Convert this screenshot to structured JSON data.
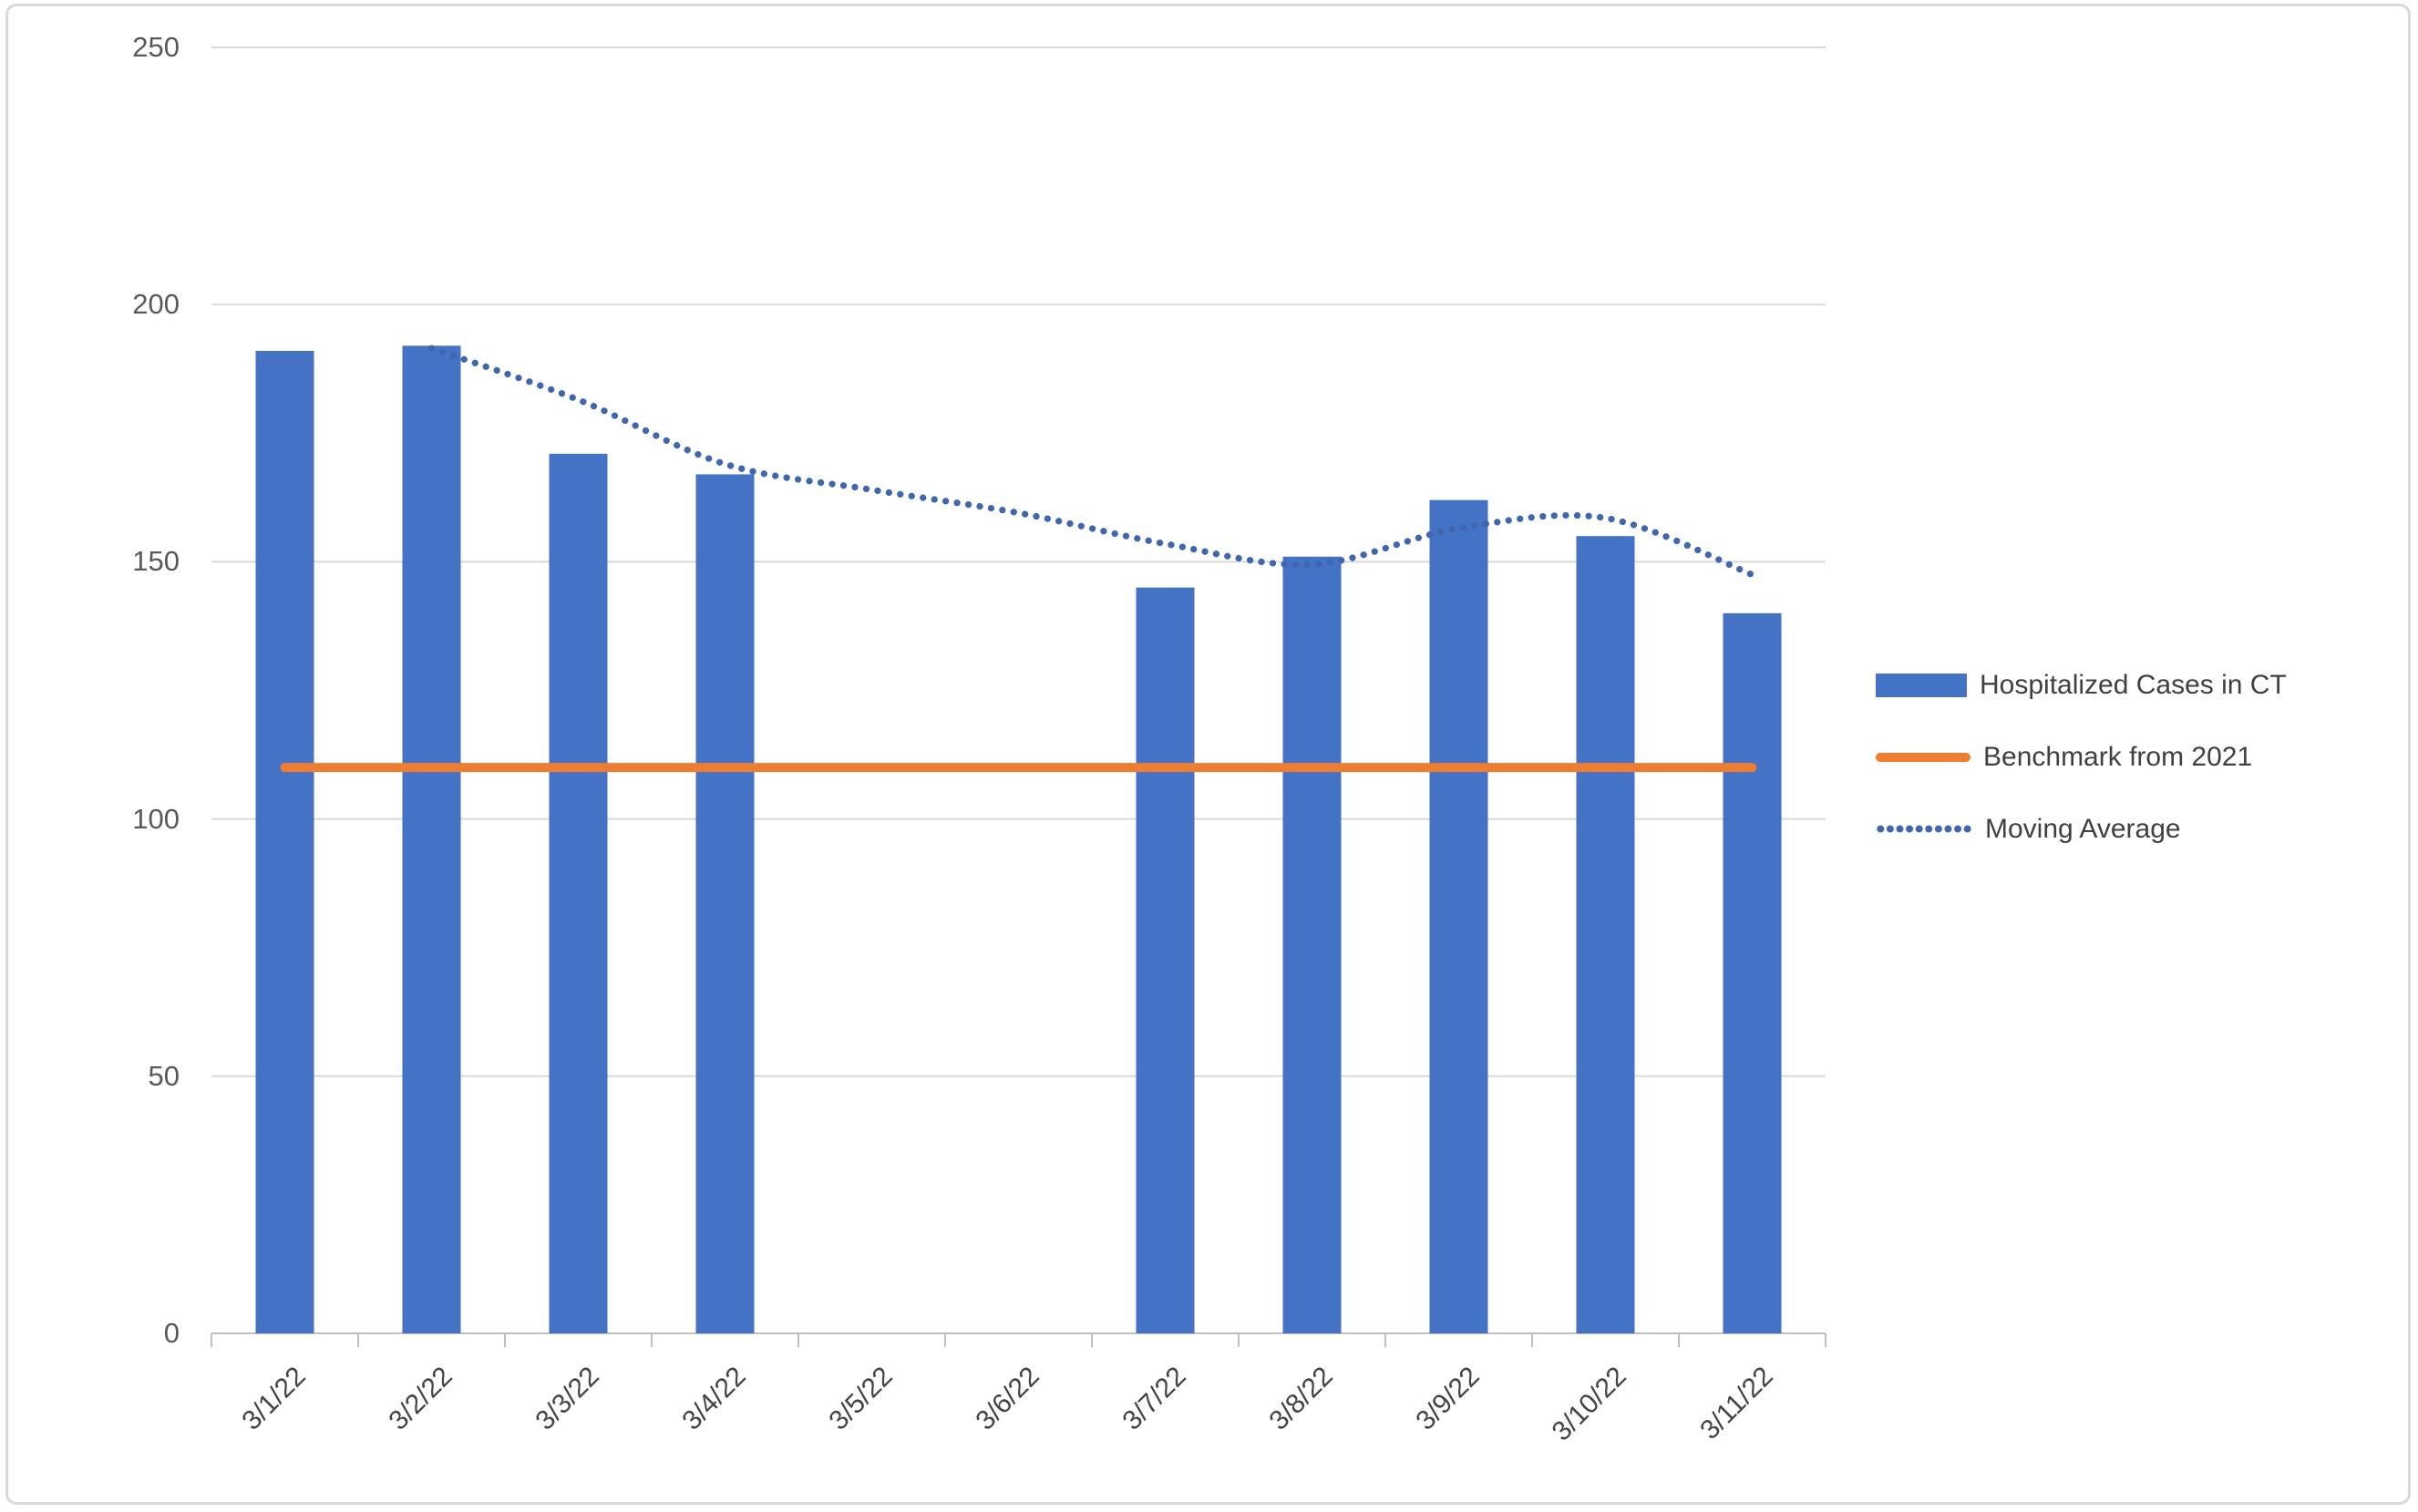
{
  "chart_data": {
    "type": "bar",
    "title": "",
    "categories": [
      "3/1/22",
      "3/2/22",
      "3/3/22",
      "3/4/22",
      "3/5/22",
      "3/6/22",
      "3/7/22",
      "3/8/22",
      "3/9/22",
      "3/10/22",
      "3/11/22"
    ],
    "series": [
      {
        "name": "Hospitalized Cases in CT",
        "type": "bar",
        "color": "#4472C4",
        "values": [
          191,
          192,
          171,
          167,
          null,
          null,
          145,
          151,
          162,
          155,
          140
        ]
      },
      {
        "name": "Benchmark from 2021",
        "type": "line",
        "color": "#ED7D31",
        "values": [
          110,
          110,
          110,
          110,
          110,
          110,
          110,
          110,
          110,
          110,
          110
        ]
      },
      {
        "name": "Moving Average",
        "type": "dotted-line",
        "color": "#3F66AE",
        "values": [
          null,
          191.5,
          181.5,
          169,
          164,
          159.5,
          153.5,
          149.5,
          156.5,
          158.5,
          147.5
        ]
      }
    ],
    "xlabel": "",
    "ylabel": "",
    "ylim": [
      0,
      250
    ],
    "yticks": [
      0,
      50,
      100,
      150,
      200,
      250
    ],
    "grid": "horizontal",
    "legend_position": "right-middle"
  },
  "colors": {
    "bar": "#4472C4",
    "benchmark": "#ED7D31",
    "moving_average": "#3F66AE",
    "gridline": "#D9D9D9",
    "axis_line": "#BFBFBF",
    "y_label_text": "#595959",
    "x_label_text": "#444444",
    "legend_text": "#404040",
    "frame_border": "#D9D9D9",
    "background": "#FFFFFF"
  }
}
